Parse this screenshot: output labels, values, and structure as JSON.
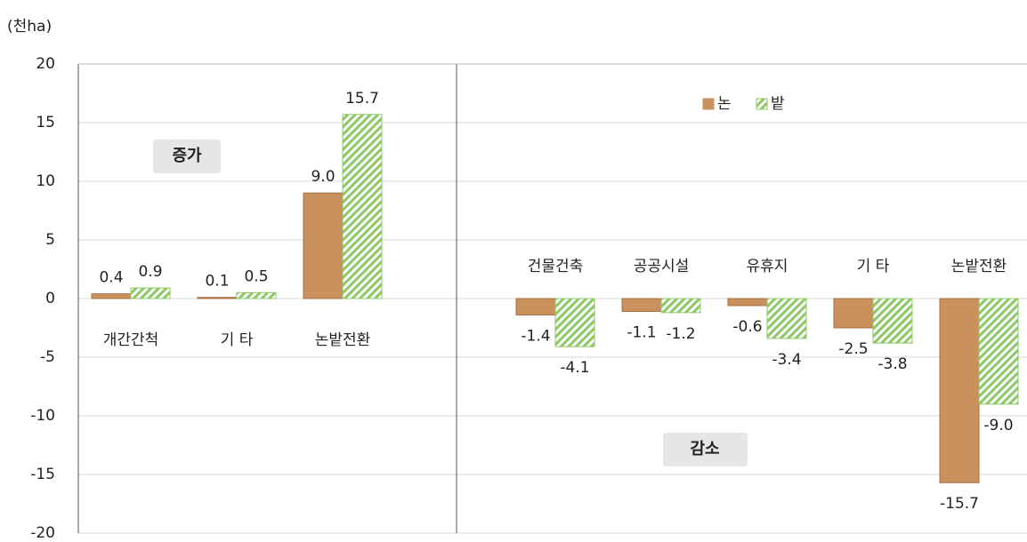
{
  "chart_data": {
    "type": "bar",
    "y_unit": "(천ha)",
    "categories": [
      "개간간척",
      "기 타",
      "논밭전환",
      "건물건축",
      "공공시설",
      "유휴지",
      "기 타",
      "논밭전환"
    ],
    "series": [
      {
        "name": "논",
        "color": "#c8915d",
        "values": [
          0.4,
          0.1,
          9.0,
          -1.4,
          -1.1,
          -0.6,
          -2.5,
          -15.7
        ],
        "value_labels": [
          "0.4",
          "0.1",
          "9.0",
          "-1.4",
          "-1.1",
          "-0.6",
          "-2.5",
          "-15.7"
        ]
      },
      {
        "name": "밭",
        "color": "#8cc863",
        "values": [
          0.9,
          0.5,
          15.7,
          -4.1,
          -1.2,
          -3.4,
          -3.8,
          -9.0
        ],
        "value_labels": [
          "0.9",
          "0.5",
          "15.7",
          "-4.1",
          "-1.2",
          "-3.4",
          "-3.8",
          "-9.0"
        ]
      }
    ],
    "annotations": [
      "증가",
      "감소"
    ],
    "ylim": [
      -20,
      20
    ],
    "yticks": [
      -20,
      -15,
      -10,
      -5,
      0,
      5,
      10,
      15,
      20
    ],
    "grid": true,
    "legend": "top-right"
  }
}
